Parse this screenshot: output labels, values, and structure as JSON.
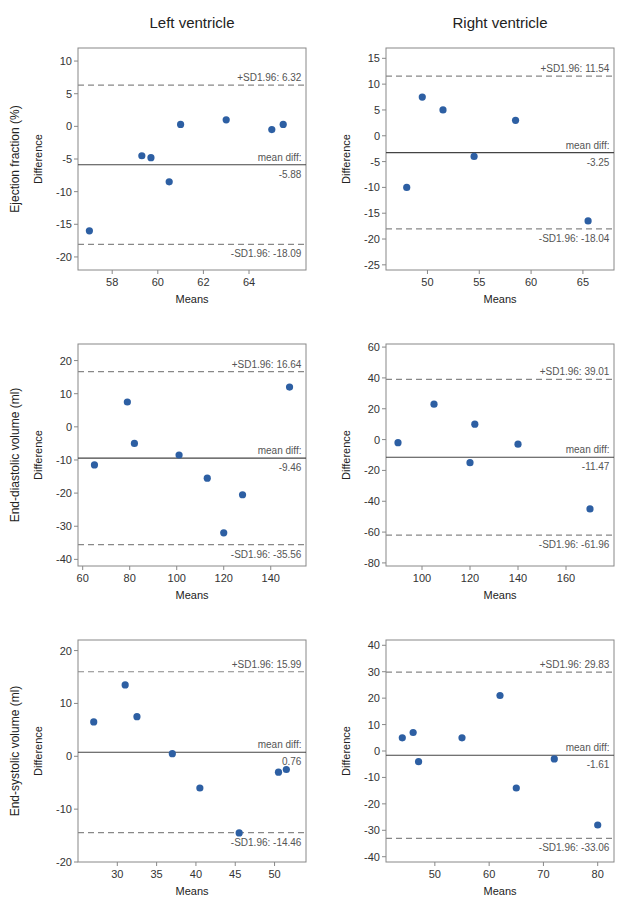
{
  "column_titles": [
    "Left ventricle",
    "Right ventricle"
  ],
  "row_labels": [
    "Ejection fraction (%)",
    "End-diastolic volume (ml)",
    "End-systolic volume (ml)"
  ],
  "chart_data": [
    {
      "type": "scatter",
      "color": "#2d5fa3",
      "xlabel": "Means",
      "ylabel": "Difference",
      "x": [
        57.0,
        59.3,
        59.7,
        60.5,
        61.0,
        63.0,
        65.0,
        65.5
      ],
      "values": [
        -16.0,
        -4.5,
        -4.8,
        -8.5,
        0.3,
        1.0,
        -0.5,
        0.3
      ],
      "xlim": [
        56.5,
        66.5
      ],
      "ylim": [
        -22,
        12
      ],
      "xticks": [
        58,
        60,
        62,
        64
      ],
      "yticks": [
        -20,
        -15,
        -10,
        -5,
        0,
        5,
        10
      ],
      "reference_lines": [
        {
          "value": 6.32,
          "label": "+SD1.96: 6.32",
          "line_style": "dashed",
          "color": "#888888"
        },
        {
          "value": -5.88,
          "label": "mean diff:",
          "value_label": "-5.88",
          "line_style": "solid",
          "color": "#444444"
        },
        {
          "value": -18.09,
          "label": "-SD1.96: -18.09",
          "line_style": "dashed",
          "color": "#888888"
        }
      ]
    },
    {
      "type": "scatter",
      "color": "#2d5fa3",
      "xlabel": "Means",
      "ylabel": "Difference",
      "x": [
        48.0,
        49.5,
        51.5,
        54.5,
        58.5,
        65.5
      ],
      "values": [
        -10.0,
        7.5,
        5.0,
        -4.0,
        3.0,
        -16.5
      ],
      "xlim": [
        46,
        68
      ],
      "ylim": [
        -26,
        17
      ],
      "xticks": [
        50,
        55,
        60,
        65
      ],
      "yticks": [
        -25,
        -20,
        -15,
        -10,
        -5,
        0,
        5,
        10,
        15
      ],
      "reference_lines": [
        {
          "value": 11.54,
          "label": "+SD1.96: 11.54",
          "line_style": "dashed",
          "color": "#888888"
        },
        {
          "value": -3.25,
          "label": "mean diff:",
          "value_label": "-3.25",
          "line_style": "solid",
          "color": "#444444"
        },
        {
          "value": -18.04,
          "label": "-SD1.96: -18.04",
          "line_style": "dashed",
          "color": "#888888"
        }
      ]
    },
    {
      "type": "scatter",
      "color": "#2d5fa3",
      "xlabel": "Means",
      "ylabel": "Difference",
      "x": [
        65.0,
        79.0,
        82.0,
        101.0,
        113.0,
        120.0,
        128.0,
        148.0
      ],
      "values": [
        -11.5,
        7.5,
        -5.0,
        -8.5,
        -15.5,
        -32.0,
        -20.5,
        12.0
      ],
      "xlim": [
        58,
        155
      ],
      "ylim": [
        -42,
        25
      ],
      "xticks": [
        60,
        80,
        100,
        120,
        140
      ],
      "yticks": [
        -40,
        -30,
        -20,
        -10,
        0,
        10,
        20
      ],
      "reference_lines": [
        {
          "value": 16.64,
          "label": "+SD1.96: 16.64",
          "line_style": "dashed",
          "color": "#888888"
        },
        {
          "value": -9.46,
          "label": "mean diff:",
          "value_label": "-9.46",
          "line_style": "solid",
          "color": "#444444"
        },
        {
          "value": -35.56,
          "label": "-SD1.96: -35.56",
          "line_style": "dashed",
          "color": "#888888"
        }
      ]
    },
    {
      "type": "scatter",
      "color": "#2d5fa3",
      "xlabel": "Means",
      "ylabel": "Difference",
      "x": [
        90.0,
        105.0,
        120.0,
        122.0,
        140.0,
        170.0
      ],
      "values": [
        -2.0,
        23.0,
        -15.0,
        10.0,
        -3.0,
        -45.0
      ],
      "xlim": [
        85,
        180
      ],
      "ylim": [
        -82,
        62
      ],
      "xticks": [
        100,
        120,
        140,
        160
      ],
      "yticks": [
        -80,
        -60,
        -40,
        -20,
        0,
        20,
        40,
        60
      ],
      "reference_lines": [
        {
          "value": 39.01,
          "label": "+SD1.96: 39.01",
          "line_style": "dashed",
          "color": "#888888"
        },
        {
          "value": -11.47,
          "label": "mean diff:",
          "value_label": "-11.47",
          "line_style": "solid",
          "color": "#444444"
        },
        {
          "value": -61.96,
          "label": "-SD1.96: -61.96",
          "line_style": "dashed",
          "color": "#888888"
        }
      ]
    },
    {
      "type": "scatter",
      "color": "#2d5fa3",
      "xlabel": "Means",
      "ylabel": "Difference",
      "x": [
        27.0,
        31.0,
        32.5,
        37.0,
        40.5,
        45.5,
        50.5,
        51.5
      ],
      "values": [
        6.5,
        13.5,
        7.5,
        0.5,
        -6.0,
        -14.5,
        -3.0,
        -2.5
      ],
      "xlim": [
        25,
        54
      ],
      "ylim": [
        -20,
        22
      ],
      "xticks": [
        30,
        35,
        40,
        45,
        50
      ],
      "yticks": [
        -20,
        -10,
        0,
        10,
        20
      ],
      "reference_lines": [
        {
          "value": 15.99,
          "label": "+SD1.96: 15.99",
          "line_style": "dashed",
          "color": "#888888"
        },
        {
          "value": 0.76,
          "label": "mean diff:",
          "value_label": "0.76",
          "line_style": "solid",
          "color": "#444444"
        },
        {
          "value": -14.46,
          "label": "-SD1.96: -14.46",
          "line_style": "dashed",
          "color": "#888888"
        }
      ]
    },
    {
      "type": "scatter",
      "color": "#2d5fa3",
      "xlabel": "Means",
      "ylabel": "Difference",
      "x": [
        44.0,
        46.0,
        47.0,
        55.0,
        62.0,
        65.0,
        72.0,
        80.0
      ],
      "values": [
        5.0,
        7.0,
        -4.0,
        5.0,
        21.0,
        -14.0,
        -3.0,
        -28.0
      ],
      "xlim": [
        41,
        83
      ],
      "ylim": [
        -42,
        42
      ],
      "xticks": [
        50,
        60,
        70,
        80
      ],
      "yticks": [
        -40,
        -30,
        -20,
        -10,
        0,
        10,
        20,
        30,
        40
      ],
      "reference_lines": [
        {
          "value": 29.83,
          "label": "+SD1.96: 29.83",
          "line_style": "dashed",
          "color": "#888888"
        },
        {
          "value": -1.61,
          "label": "mean diff:",
          "value_label": "-1.61",
          "line_style": "solid",
          "color": "#444444"
        },
        {
          "value": -33.06,
          "label": "-SD1.96: -33.06",
          "line_style": "dashed",
          "color": "#888888"
        }
      ]
    }
  ]
}
